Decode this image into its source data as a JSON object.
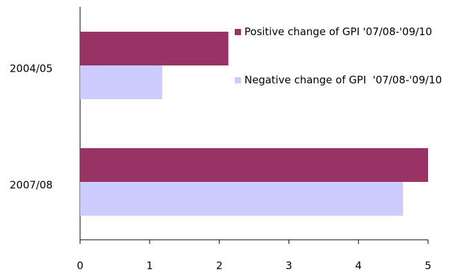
{
  "chart_data": {
    "type": "hbar",
    "categories": [
      "2004/05",
      "2007/08"
    ],
    "series": [
      {
        "name": "Positive change of GPI '07/08-'09/10",
        "color": "#993366",
        "values": [
          2.13,
          5.0
        ]
      },
      {
        "name": "Negative change of GPI  '07/08-'09/10",
        "color": "#ccccff",
        "values": [
          1.18,
          4.64
        ]
      }
    ],
    "xlim": [
      0,
      5
    ],
    "xticks": [
      0,
      1,
      2,
      3,
      4,
      5
    ],
    "grid": false,
    "legend": "top-right"
  }
}
